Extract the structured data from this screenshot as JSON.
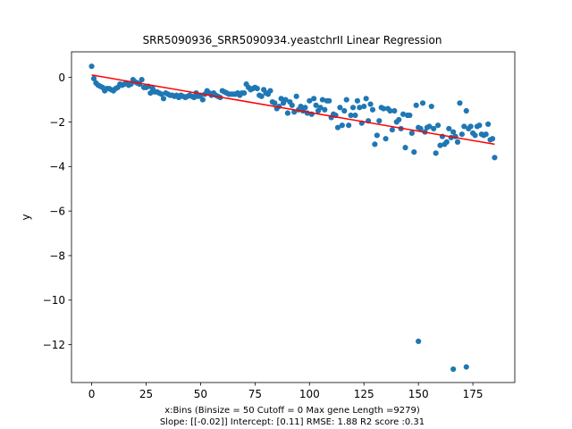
{
  "chart_data": {
    "type": "scatter",
    "title": "SRR5090936_SRR5090934.yeastchrII Linear Regression",
    "xlabel_line1": "x:Bins  (Binsize = 50 Cutoff = 0 Max gene Length =9279)",
    "xlabel_line2": "Slope: [[-0.02]] Intercept: [0.11] RMSE: 1.88 R2 score :0.31",
    "ylabel": "y",
    "xlim": [
      -9.25,
      194.25
    ],
    "ylim": [
      -13.7,
      1.15
    ],
    "xticks": [
      0,
      25,
      50,
      75,
      100,
      125,
      150,
      175
    ],
    "yticks": [
      0,
      -2,
      -4,
      -6,
      -8,
      -10,
      -12
    ],
    "grid": false,
    "colors": {
      "points": "#1f77b4",
      "fit_line": "#ff0000"
    },
    "series": [
      {
        "type": "scatter",
        "x": [
          0,
          1,
          2,
          3,
          4,
          5,
          6,
          7,
          8,
          9,
          10,
          11,
          12,
          13,
          14,
          15,
          16,
          17,
          18,
          19,
          20,
          21,
          22,
          23,
          24,
          25,
          26,
          27,
          28,
          29,
          30,
          31,
          32,
          33,
          34,
          35,
          36,
          37,
          38,
          39,
          40,
          41,
          42,
          43,
          44,
          45,
          46,
          47,
          48,
          49,
          50,
          51,
          52,
          53,
          54,
          55,
          56,
          57,
          58,
          59,
          60,
          61,
          62,
          63,
          64,
          65,
          66,
          67,
          68,
          69,
          70,
          71,
          72,
          73,
          74,
          75,
          76,
          77,
          78,
          79,
          80,
          81,
          82,
          83,
          84,
          85,
          86,
          87,
          88,
          89,
          90,
          91,
          92,
          93,
          94,
          95,
          96,
          97,
          98,
          99,
          100,
          101,
          102,
          103,
          104,
          105,
          106,
          107,
          108,
          109,
          110,
          111,
          112,
          113,
          114,
          115,
          116,
          117,
          118,
          119,
          120,
          121,
          122,
          123,
          124,
          125,
          126,
          127,
          128,
          129,
          130,
          131,
          132,
          133,
          134,
          135,
          136,
          137,
          138,
          139,
          140,
          141,
          142,
          143,
          144,
          145,
          146,
          147,
          148,
          149,
          150,
          151,
          152,
          153,
          154,
          155,
          156,
          157,
          158,
          159,
          160,
          161,
          162,
          163,
          164,
          165,
          166,
          167,
          168,
          169,
          170,
          171,
          172,
          173,
          174,
          175,
          176,
          177,
          178,
          179,
          180,
          181,
          182,
          183,
          184,
          185
        ],
        "y": [
          0.5,
          -0.05,
          -0.25,
          -0.35,
          -0.4,
          -0.45,
          -0.6,
          -0.5,
          -0.5,
          -0.55,
          -0.6,
          -0.5,
          -0.45,
          -0.3,
          -0.35,
          -0.3,
          -0.25,
          -0.35,
          -0.3,
          -0.1,
          -0.2,
          -0.25,
          -0.3,
          -0.1,
          -0.45,
          -0.45,
          -0.4,
          -0.7,
          -0.5,
          -0.65,
          -0.65,
          -0.7,
          -0.75,
          -0.95,
          -0.7,
          -0.75,
          -0.8,
          -0.8,
          -0.85,
          -0.8,
          -0.9,
          -0.8,
          -0.85,
          -0.9,
          -0.85,
          -0.8,
          -0.85,
          -0.9,
          -0.7,
          -0.85,
          -0.8,
          -1.0,
          -0.75,
          -0.6,
          -0.7,
          -0.8,
          -0.7,
          -0.8,
          -0.85,
          -0.9,
          -0.6,
          -0.65,
          -0.7,
          -0.75,
          -0.75,
          -0.75,
          -0.75,
          -0.7,
          -0.8,
          -0.7,
          -0.7,
          -0.3,
          -0.45,
          -0.55,
          -0.5,
          -0.45,
          -0.5,
          -0.8,
          -0.85,
          -0.55,
          -0.7,
          -0.75,
          -0.6,
          -1.1,
          -1.15,
          -1.4,
          -1.3,
          -0.95,
          -1.15,
          -1.0,
          -1.6,
          -1.1,
          -1.25,
          -1.55,
          -0.85,
          -1.45,
          -1.3,
          -1.5,
          -1.35,
          -1.6,
          -1.05,
          -1.65,
          -0.95,
          -1.25,
          -1.5,
          -1.35,
          -1.0,
          -1.45,
          -1.05,
          -1.05,
          -1.8,
          -1.65,
          -1.7,
          -2.25,
          -1.35,
          -2.15,
          -1.5,
          -1.0,
          -2.15,
          -1.7,
          -1.35,
          -1.7,
          -1.05,
          -1.35,
          -2.05,
          -1.3,
          -0.95,
          -1.95,
          -1.2,
          -1.45,
          -3.0,
          -2.6,
          -1.95,
          -1.35,
          -1.4,
          -2.75,
          -1.4,
          -1.5,
          -2.35,
          -1.5,
          -2.0,
          -1.9,
          -2.3,
          -1.65,
          -3.15,
          -1.7,
          -1.7,
          -2.5,
          -3.35,
          -1.25,
          -2.25,
          -2.3,
          -1.15,
          -2.45,
          -2.25,
          -2.2,
          -1.3,
          -2.3,
          -3.4,
          -2.15,
          -3.05,
          -2.65,
          -3.0,
          -2.9,
          -2.3,
          -2.7,
          -2.45,
          -2.65,
          -2.9,
          -1.15,
          -2.55,
          -2.2,
          -1.5,
          -2.3,
          -2.2,
          -2.5,
          -2.6,
          -2.2,
          -2.15,
          -2.55,
          -2.6,
          -2.55,
          -2.1,
          -2.8,
          -2.75,
          -3.6
        ],
        "outliers": [
          {
            "x": 150,
            "y": -11.85
          },
          {
            "x": 166,
            "y": -13.1
          },
          {
            "x": 172,
            "y": -13.0
          }
        ]
      },
      {
        "type": "line",
        "x": [
          0,
          185
        ],
        "y": [
          0.11,
          -3.0
        ]
      }
    ]
  }
}
